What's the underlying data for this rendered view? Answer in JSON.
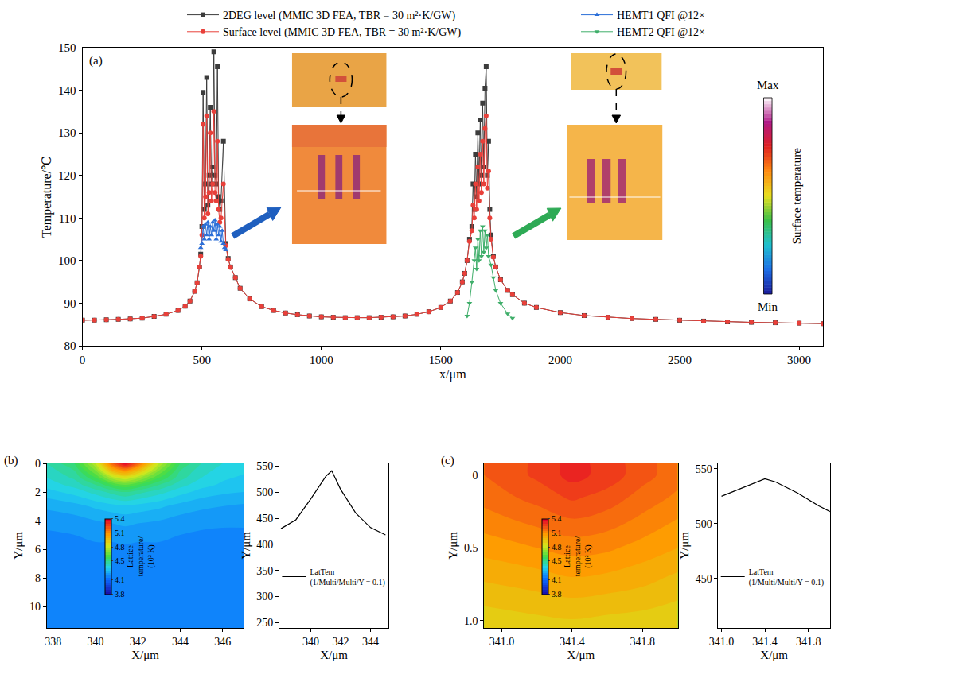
{
  "chart_data": [
    {
      "panel": "(a)",
      "type": "line",
      "x_label": "x/μm",
      "y_label": "Temperature/℃",
      "xlim": [
        0,
        3100
      ],
      "xticks": [
        0,
        500,
        1000,
        1500,
        2000,
        2500,
        3000
      ],
      "ylim": [
        80,
        150
      ],
      "yticks": [
        80,
        90,
        100,
        110,
        120,
        130,
        140,
        150
      ],
      "legend": "top",
      "inset_colorbar": {
        "title": "Surface temperature",
        "max_label": "Max",
        "min_label": "Min"
      },
      "series": [
        {
          "name": "2DEG level (MMIC 3D FEA, TBR = 30 m²·K/GW)",
          "color": "#3c3c3c",
          "marker": "square",
          "x": [
            0,
            50,
            100,
            150,
            200,
            250,
            300,
            350,
            400,
            430,
            450,
            470,
            480,
            490,
            495,
            500,
            505,
            510,
            515,
            520,
            525,
            530,
            535,
            540,
            545,
            550,
            555,
            560,
            565,
            570,
            575,
            580,
            590,
            600,
            610,
            620,
            640,
            660,
            700,
            750,
            800,
            850,
            900,
            950,
            1000,
            1050,
            1100,
            1150,
            1200,
            1250,
            1300,
            1350,
            1400,
            1450,
            1500,
            1540,
            1570,
            1590,
            1600,
            1610,
            1620,
            1630,
            1635,
            1640,
            1645,
            1650,
            1655,
            1660,
            1665,
            1670,
            1675,
            1680,
            1685,
            1690,
            1695,
            1700,
            1705,
            1710,
            1720,
            1730,
            1750,
            1780,
            1800,
            1850,
            1900,
            2000,
            2100,
            2200,
            2300,
            2400,
            2500,
            2600,
            2700,
            2800,
            2900,
            3000,
            3100
          ],
          "values": [
            86.0,
            86.0,
            86.1,
            86.2,
            86.3,
            86.5,
            86.9,
            87.4,
            88.3,
            89.3,
            90.5,
            92.8,
            94.8,
            98.5,
            101.5,
            108,
            139.5,
            112,
            118,
            143,
            113,
            120,
            136,
            118,
            122,
            149,
            120,
            118,
            145.5,
            115,
            112,
            114,
            128,
            104,
            100.5,
            98.5,
            96,
            93.5,
            91,
            89.2,
            88.3,
            87.7,
            87.3,
            87.0,
            86.8,
            86.7,
            86.6,
            86.6,
            86.6,
            86.7,
            86.8,
            87.0,
            87.4,
            88.0,
            89.0,
            90.5,
            92.5,
            95,
            97,
            100,
            105,
            108,
            118,
            112,
            125,
            115,
            130,
            118,
            133,
            120,
            137,
            122,
            140.5,
            145.5,
            120,
            128,
            112,
            106,
            101,
            98.5,
            95.5,
            93,
            92,
            90,
            89,
            87.8,
            87.1,
            86.7,
            86.4,
            86.2,
            86.0,
            85.8,
            85.6,
            85.5,
            85.4,
            85.3,
            85.2
          ]
        },
        {
          "name": "Surface level (MMIC 3D FEA, TBR = 30 m²·K/GW)",
          "color": "#e8403a",
          "marker": "circle",
          "x": [
            0,
            50,
            100,
            150,
            200,
            250,
            300,
            350,
            400,
            430,
            450,
            470,
            480,
            490,
            495,
            500,
            505,
            510,
            515,
            520,
            525,
            530,
            535,
            540,
            545,
            550,
            555,
            560,
            565,
            570,
            575,
            580,
            590,
            600,
            610,
            620,
            640,
            660,
            700,
            750,
            800,
            850,
            900,
            950,
            1000,
            1050,
            1100,
            1150,
            1200,
            1250,
            1300,
            1350,
            1400,
            1450,
            1500,
            1540,
            1570,
            1590,
            1600,
            1610,
            1620,
            1630,
            1635,
            1640,
            1645,
            1650,
            1655,
            1660,
            1665,
            1670,
            1675,
            1680,
            1685,
            1690,
            1695,
            1700,
            1705,
            1710,
            1720,
            1730,
            1750,
            1780,
            1800,
            1850,
            1900,
            2000,
            2100,
            2200,
            2300,
            2400,
            2500,
            2600,
            2700,
            2800,
            2900,
            3000,
            3100
          ],
          "values": [
            86.0,
            86.0,
            86.1,
            86.2,
            86.3,
            86.5,
            86.9,
            87.4,
            88.3,
            89.3,
            90.5,
            92.8,
            94.8,
            98.5,
            101,
            106,
            132,
            110,
            115,
            134,
            111,
            116,
            130,
            114,
            118,
            135,
            116,
            114,
            128,
            112,
            109,
            110,
            118,
            103.5,
            100.3,
            98.4,
            96,
            93.5,
            91,
            89.2,
            88.3,
            87.7,
            87.3,
            87.0,
            86.8,
            86.7,
            86.6,
            86.6,
            86.6,
            86.7,
            86.8,
            87.0,
            87.4,
            88.0,
            89.0,
            90.5,
            92.5,
            95,
            97,
            100,
            104.5,
            107,
            113,
            110,
            118,
            112,
            122,
            114,
            125,
            116,
            128,
            118,
            131,
            134,
            117,
            121,
            110,
            105,
            100.8,
            98.5,
            95.5,
            93,
            92,
            90,
            89,
            87.8,
            87.1,
            86.7,
            86.4,
            86.2,
            86.0,
            85.8,
            85.6,
            85.5,
            85.4,
            85.3,
            85.2
          ]
        },
        {
          "name": "HEMT1 QFI @12×",
          "color": "#2b6fd8",
          "marker": "triangle-up",
          "x": [
            495,
            500,
            505,
            510,
            515,
            520,
            525,
            530,
            535,
            540,
            545,
            550,
            555,
            560,
            565,
            570,
            575,
            580,
            585,
            590,
            595,
            600
          ],
          "values": [
            103,
            104,
            108,
            105,
            108.5,
            106,
            109,
            105,
            108,
            106,
            109,
            107,
            109.5,
            105,
            108.5,
            106,
            108,
            104.5,
            107,
            104,
            103,
            102.5
          ]
        },
        {
          "name": "HEMT2 QFI @12×",
          "color": "#3fae6a",
          "marker": "triangle-down",
          "x": [
            1610,
            1620,
            1630,
            1640,
            1645,
            1650,
            1655,
            1660,
            1665,
            1670,
            1675,
            1680,
            1685,
            1690,
            1695,
            1700,
            1710,
            1720,
            1730,
            1750,
            1780,
            1800
          ],
          "values": [
            87,
            90,
            95,
            100,
            103,
            98,
            105,
            100,
            107,
            101,
            108,
            102,
            107,
            103,
            106,
            101,
            99,
            96,
            93,
            90,
            87.5,
            86.5
          ]
        }
      ]
    },
    {
      "panel": "(b)",
      "type": "heatmap",
      "x_label": "X/μm",
      "y_label": "Y/μm",
      "xlim": [
        337.7,
        347
      ],
      "xticks": [
        338,
        340,
        342,
        344,
        346
      ],
      "ylim": [
        11.5,
        0
      ],
      "yticks": [
        0,
        2,
        4,
        6,
        8,
        10
      ],
      "x": [
        337.7,
        339,
        340,
        340.8,
        341.4,
        342,
        343,
        344,
        345,
        346,
        347
      ],
      "y": [
        0,
        0.5,
        1,
        1.5,
        2,
        3,
        4,
        5,
        6,
        8,
        11.5
      ],
      "z": [
        [
          4.45,
          4.55,
          4.8,
          5.2,
          5.4,
          5.2,
          4.8,
          4.55,
          4.45,
          4.4,
          4.38
        ],
        [
          4.42,
          4.5,
          4.7,
          5.0,
          5.1,
          4.98,
          4.7,
          4.5,
          4.42,
          4.38,
          4.36
        ],
        [
          4.4,
          4.46,
          4.6,
          4.78,
          4.85,
          4.77,
          4.6,
          4.47,
          4.4,
          4.36,
          4.34
        ],
        [
          4.37,
          4.42,
          4.5,
          4.6,
          4.65,
          4.6,
          4.5,
          4.42,
          4.37,
          4.34,
          4.32
        ],
        [
          4.33,
          4.37,
          4.42,
          4.47,
          4.5,
          4.47,
          4.42,
          4.37,
          4.33,
          4.31,
          4.3
        ],
        [
          4.26,
          4.28,
          4.31,
          4.33,
          4.34,
          4.33,
          4.31,
          4.28,
          4.26,
          4.25,
          4.24
        ],
        [
          4.22,
          4.23,
          4.25,
          4.26,
          4.27,
          4.26,
          4.25,
          4.23,
          4.22,
          4.21,
          4.21
        ],
        [
          4.19,
          4.2,
          4.21,
          4.21,
          4.22,
          4.21,
          4.21,
          4.2,
          4.19,
          4.19,
          4.19
        ],
        [
          4.18,
          4.18,
          4.19,
          4.19,
          4.19,
          4.19,
          4.19,
          4.18,
          4.18,
          4.18,
          4.18
        ],
        [
          4.17,
          4.17,
          4.17,
          4.17,
          4.17,
          4.17,
          4.17,
          4.17,
          4.17,
          4.17,
          4.17
        ],
        [
          4.16,
          4.16,
          4.16,
          4.16,
          4.16,
          4.16,
          4.16,
          4.16,
          4.16,
          4.16,
          4.16
        ]
      ],
      "colorbar": {
        "title": "Lattice temperature/ (10² K)",
        "range": [
          3.8,
          5.4
        ],
        "ticks": [
          3.8,
          4.1,
          4.5,
          4.8,
          5.1,
          5.4
        ]
      }
    },
    {
      "type": "line",
      "x_label": "X/μm",
      "y_label": "Y/μm",
      "xlim": [
        337.9,
        345.2
      ],
      "xticks": [
        340,
        342,
        344
      ],
      "ylim": [
        240,
        555
      ],
      "yticks": [
        250,
        300,
        350,
        400,
        450,
        500,
        550
      ],
      "legend": "lower left",
      "series": [
        {
          "name": "LatTem (1/Multi/Multi/Y = 0.1)",
          "color": "#000000",
          "x": [
            338,
            339,
            340,
            341,
            341.4,
            342,
            343,
            344,
            345
          ],
          "values": [
            430,
            447,
            487,
            530,
            541,
            505,
            460,
            432,
            418
          ]
        }
      ]
    },
    {
      "panel": "(c)",
      "type": "heatmap",
      "x_label": "X/μm",
      "y_label": "Y/μm",
      "xlim": [
        340.9,
        342.0
      ],
      "xticks": [
        {
          "value": 341,
          "label": "341.0"
        },
        341.4,
        341.8
      ],
      "ylim": [
        1.05,
        -0.08
      ],
      "yticks": [
        0,
        0.5,
        {
          "value": 1,
          "label": "1.0"
        }
      ],
      "x": [
        340.9,
        341.2,
        341.4,
        341.6,
        341.8,
        342.0
      ],
      "y": [
        -0.08,
        0,
        0.15,
        0.3,
        0.5,
        0.7,
        0.9,
        1.05
      ],
      "z": [
        [
          5.2,
          5.26,
          5.32,
          5.28,
          5.22,
          5.17
        ],
        [
          5.2,
          5.26,
          5.32,
          5.28,
          5.22,
          5.17
        ],
        [
          5.17,
          5.22,
          5.26,
          5.23,
          5.18,
          5.14
        ],
        [
          5.13,
          5.17,
          5.2,
          5.18,
          5.14,
          5.1
        ],
        [
          5.07,
          5.1,
          5.12,
          5.11,
          5.08,
          5.05
        ],
        [
          5.01,
          5.03,
          5.05,
          5.04,
          5.02,
          4.99
        ],
        [
          4.95,
          4.97,
          4.98,
          4.97,
          4.96,
          4.94
        ],
        [
          4.91,
          4.92,
          4.93,
          4.92,
          4.91,
          4.9
        ]
      ],
      "colorbar": {
        "title": "Lattice temperature/ (10² K)",
        "range": [
          3.8,
          5.4
        ],
        "ticks": [
          3.8,
          4.1,
          4.5,
          4.8,
          5.1,
          5.4
        ]
      }
    },
    {
      "type": "line",
      "x_label": "X/μm",
      "y_label": "Y/μm",
      "xlim": [
        340.97,
        342.0
      ],
      "xticks": [
        {
          "value": 341,
          "label": "341.0"
        },
        341.4,
        341.8
      ],
      "ylim": [
        405,
        555
      ],
      "yticks": [
        450,
        500,
        550
      ],
      "legend": "lower left",
      "series": [
        {
          "name": "LatTem (1/Multi/Multi/Y = 0.1)",
          "color": "#000000",
          "x": [
            341.0,
            341.1,
            341.2,
            341.3,
            341.4,
            341.5,
            341.6,
            341.7,
            341.8,
            341.9,
            342.0
          ],
          "values": [
            525,
            529,
            533,
            537,
            541,
            538,
            533,
            528,
            522,
            516,
            511
          ]
        }
      ]
    }
  ]
}
